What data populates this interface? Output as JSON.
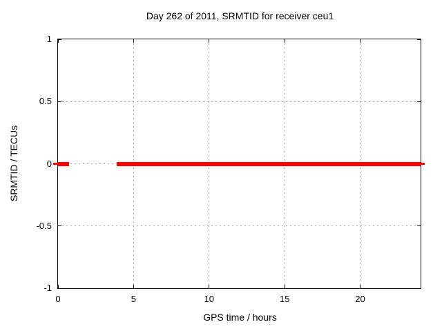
{
  "chart_data": {
    "type": "line",
    "title": "Day 262 of 2011, SRMTID for receiver ceu1",
    "xlabel": "GPS time / hours",
    "ylabel": "SRMTID / TECUs",
    "xlim": [
      0,
      24
    ],
    "ylim": [
      -1,
      1
    ],
    "xticks": [
      0,
      5,
      10,
      15,
      20
    ],
    "xtick_labels": [
      "0",
      "5",
      "10",
      "15",
      "20"
    ],
    "yticks": [
      1,
      0.5,
      0,
      -0.5,
      -1
    ],
    "ytick_labels": [
      "1",
      "0.5",
      "0",
      "-0.5",
      "-1"
    ],
    "grid": true,
    "legend": "none",
    "series": [
      {
        "name": "SRMTID",
        "color": "#ff0000",
        "y_value": 0,
        "segments": [
          {
            "x_start": 0,
            "x_end": 0.75
          },
          {
            "x_start": 3.9,
            "x_end": 24
          }
        ]
      }
    ],
    "colors": {
      "line": "#ff0000",
      "grid": "#a6a6a6",
      "axis": "#000000",
      "text": "#000000",
      "background": "#ffffff"
    }
  }
}
